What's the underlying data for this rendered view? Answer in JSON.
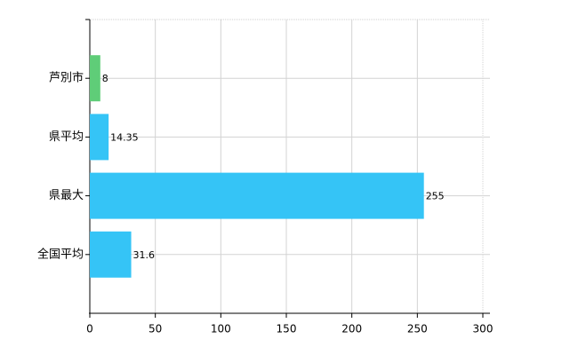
{
  "chart_data": {
    "type": "hbar",
    "categories": [
      "芦別市",
      "県平均",
      "県最大",
      "全国平均"
    ],
    "values": [
      8,
      14.35,
      255,
      31.6
    ],
    "colors": [
      "#5fcd78",
      "#35c4f6",
      "#35c4f6",
      "#35c4f6"
    ],
    "xlim": [
      0,
      300
    ],
    "xticks": [
      0,
      50,
      100,
      150,
      200,
      250,
      300
    ],
    "grid": true
  }
}
